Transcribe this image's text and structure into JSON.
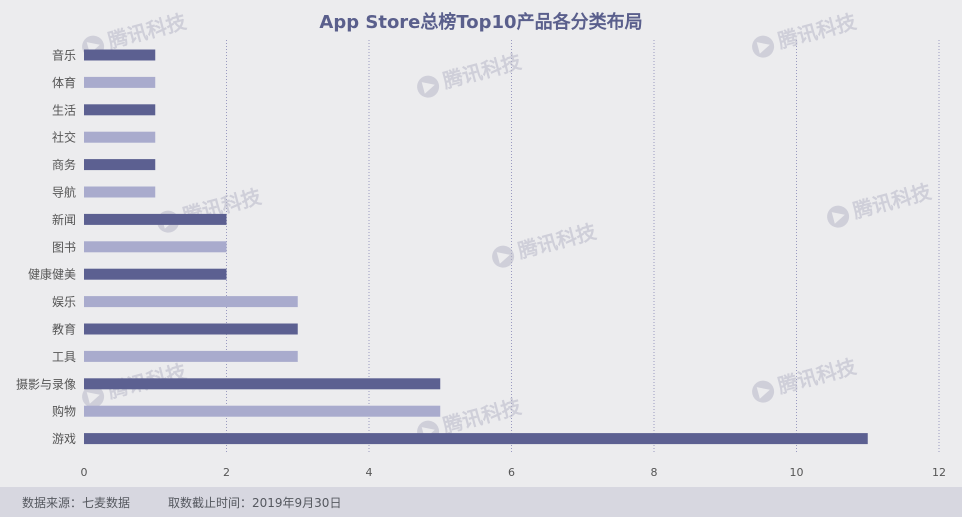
{
  "colors": {
    "dark_bar": "#5c6091",
    "light_bar": "#a9abcd",
    "grid": "#9a9ac0",
    "axis_text": "#555555",
    "title": "#5a5f8c",
    "watermark": "#b8b8c8"
  },
  "watermark_text": "腾讯科技",
  "chart_data": {
    "type": "bar",
    "orientation": "horizontal",
    "title": "App Store总榜Top10产品各分类布局",
    "categories": [
      "音乐",
      "体育",
      "生活",
      "社交",
      "商务",
      "导航",
      "新闻",
      "图书",
      "健康健美",
      "娱乐",
      "教育",
      "工具",
      "摄影与录像",
      "购物",
      "游戏"
    ],
    "values": [
      1,
      1,
      1,
      1,
      1,
      1,
      2,
      2,
      2,
      3,
      3,
      3,
      5,
      5,
      11
    ],
    "xlim": [
      0,
      12
    ],
    "xticks": [
      0,
      2,
      4,
      6,
      8,
      10,
      12
    ],
    "grid": "vertical-dotted",
    "bar_color_pattern": "alternating dark/light"
  },
  "footer": {
    "source": "数据来源：七麦数据",
    "date": "取数截止时间：2019年9月30日"
  }
}
